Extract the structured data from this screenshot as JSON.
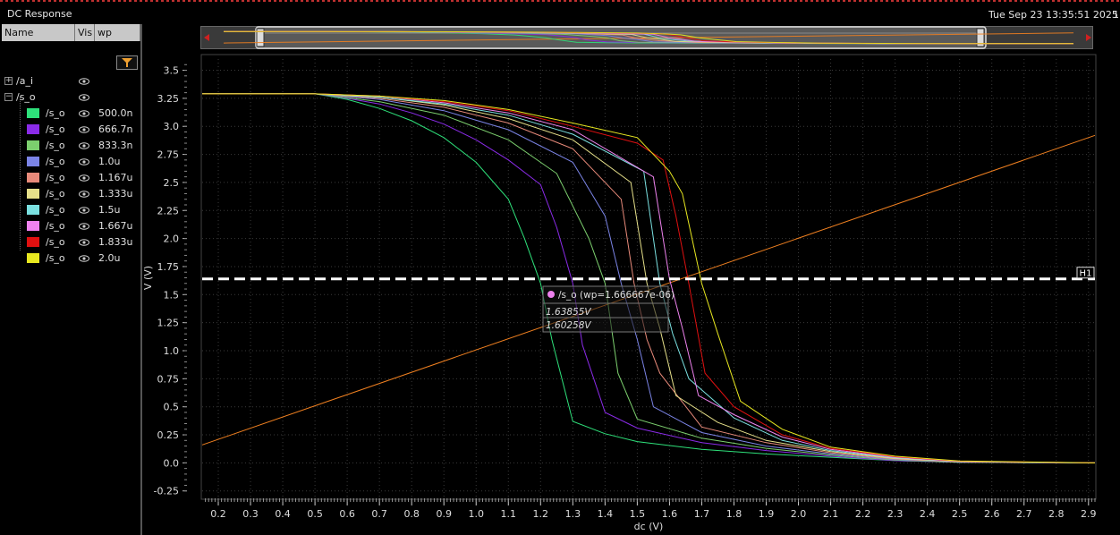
{
  "window": {
    "title": "DC Response",
    "timestamp": "Tue Sep 23 13:35:51 2025",
    "edge_text": "1"
  },
  "panel": {
    "columns": [
      "Name",
      "Vis",
      "wp"
    ],
    "groups": [
      {
        "name": "/a_i",
        "expand": "+"
      },
      {
        "name": "/s_o",
        "expand": "−"
      }
    ],
    "signals": [
      {
        "name": "/s_o",
        "wp": "500.0n",
        "color": "#2ee07a"
      },
      {
        "name": "/s_o",
        "wp": "666.7n",
        "color": "#8a2be8"
      },
      {
        "name": "/s_o",
        "wp": "833.3n",
        "color": "#7ccf6e"
      },
      {
        "name": "/s_o",
        "wp": "1.0u",
        "color": "#7b84e6"
      },
      {
        "name": "/s_o",
        "wp": "1.167u",
        "color": "#e88a7a"
      },
      {
        "name": "/s_o",
        "wp": "1.333u",
        "color": "#e6e08a"
      },
      {
        "name": "/s_o",
        "wp": "1.5u",
        "color": "#7ae0e0"
      },
      {
        "name": "/s_o",
        "wp": "1.667u",
        "color": "#ee82ee"
      },
      {
        "name": "/s_o",
        "wp": "1.833u",
        "color": "#e01010"
      },
      {
        "name": "/s_o",
        "wp": "2.0u",
        "color": "#e8e820"
      }
    ]
  },
  "marker": {
    "label": "H1",
    "value": 1.64,
    "color": "#ffffff"
  },
  "tooltip": {
    "title": "/s_o (wp=1.666667e-06)",
    "line1": "1.63855V",
    "line2": "1.60258V",
    "dot_color": "#ee82ee"
  },
  "chart_data": {
    "type": "line",
    "xlabel": "dc (V)",
    "ylabel": "V (V)",
    "xlim": [
      0.15,
      2.92
    ],
    "ylim": [
      -0.3,
      3.6
    ],
    "xticks": [
      "0.2",
      "0.3",
      "0.4",
      "0.5",
      "0.6",
      "0.7",
      "0.8",
      "0.9",
      "1.0",
      "1.1",
      "1.2",
      "1.3",
      "1.4",
      "1.5",
      "1.6",
      "1.7",
      "1.8",
      "1.9",
      "2.0",
      "2.1",
      "2.2",
      "2.3",
      "2.4",
      "2.5",
      "2.6",
      "2.7",
      "2.8",
      "2.9"
    ],
    "yticks": [
      "-0.25",
      "0.0",
      "0.25",
      "0.5",
      "0.75",
      "1.0",
      "1.25",
      "1.5",
      "1.75",
      "2.0",
      "2.25",
      "2.5",
      "2.75",
      "3.0",
      "3.25",
      "3.5"
    ],
    "grid": true,
    "background": "#000000",
    "series": [
      {
        "name": "/a_i",
        "color": "#f08020",
        "x": [
          0.15,
          2.92
        ],
        "y": [
          0.16,
          2.92
        ]
      },
      {
        "name": "500.0n",
        "color": "#2ee07a",
        "x": [
          0.15,
          0.5,
          0.6,
          0.7,
          0.8,
          0.9,
          1.0,
          1.1,
          1.15,
          1.2,
          1.235,
          1.3,
          1.4,
          1.5,
          1.7,
          1.9,
          2.1,
          2.3,
          2.5,
          2.92
        ],
        "y": [
          3.29,
          3.29,
          3.24,
          3.16,
          3.05,
          2.9,
          2.68,
          2.35,
          2.0,
          1.6,
          1.1,
          0.37,
          0.26,
          0.19,
          0.12,
          0.08,
          0.05,
          0.02,
          0.005,
          0.0
        ]
      },
      {
        "name": "666.7n",
        "color": "#8a2be8",
        "x": [
          0.15,
          0.5,
          0.6,
          0.7,
          0.8,
          0.9,
          1.0,
          1.1,
          1.2,
          1.25,
          1.3,
          1.33,
          1.4,
          1.5,
          1.7,
          1.9,
          2.1,
          2.3,
          2.5,
          2.92
        ],
        "y": [
          3.29,
          3.29,
          3.25,
          3.2,
          3.12,
          3.02,
          2.88,
          2.7,
          2.48,
          2.1,
          1.6,
          1.05,
          0.45,
          0.31,
          0.18,
          0.11,
          0.06,
          0.02,
          0.005,
          0.0
        ]
      },
      {
        "name": "833.3n",
        "color": "#7ccf6e",
        "x": [
          0.15,
          0.5,
          0.7,
          0.9,
          1.1,
          1.25,
          1.35,
          1.4,
          1.44,
          1.5,
          1.7,
          1.9,
          2.1,
          2.3,
          2.5,
          2.92
        ],
        "y": [
          3.29,
          3.29,
          3.22,
          3.1,
          2.88,
          2.58,
          2.0,
          1.6,
          0.8,
          0.39,
          0.22,
          0.13,
          0.07,
          0.025,
          0.005,
          0.0
        ]
      },
      {
        "name": "1.0u",
        "color": "#7b84e6",
        "x": [
          0.15,
          0.5,
          0.7,
          0.9,
          1.1,
          1.3,
          1.4,
          1.45,
          1.5,
          1.55,
          1.7,
          1.9,
          2.1,
          2.3,
          2.5,
          2.92
        ],
        "y": [
          3.29,
          3.29,
          3.24,
          3.14,
          2.97,
          2.68,
          2.2,
          1.6,
          1.1,
          0.5,
          0.27,
          0.15,
          0.08,
          0.03,
          0.008,
          0.0
        ]
      },
      {
        "name": "1.167u",
        "color": "#e88a7a",
        "x": [
          0.15,
          0.5,
          0.7,
          0.9,
          1.1,
          1.3,
          1.45,
          1.49,
          1.53,
          1.57,
          1.7,
          1.9,
          2.1,
          2.3,
          2.5,
          2.92
        ],
        "y": [
          3.29,
          3.29,
          3.25,
          3.17,
          3.03,
          2.8,
          2.35,
          1.6,
          1.1,
          0.8,
          0.32,
          0.18,
          0.09,
          0.035,
          0.009,
          0.0
        ]
      },
      {
        "name": "1.333u",
        "color": "#e6e08a",
        "x": [
          0.15,
          0.5,
          0.7,
          0.9,
          1.1,
          1.3,
          1.48,
          1.53,
          1.57,
          1.62,
          1.75,
          1.9,
          2.1,
          2.3,
          2.5,
          2.92
        ],
        "y": [
          3.29,
          3.29,
          3.26,
          3.19,
          3.07,
          2.88,
          2.5,
          1.6,
          1.2,
          0.6,
          0.36,
          0.2,
          0.1,
          0.04,
          0.01,
          0.0
        ]
      },
      {
        "name": "1.5u",
        "color": "#7ae0e0",
        "x": [
          0.15,
          0.5,
          0.7,
          0.9,
          1.1,
          1.3,
          1.52,
          1.57,
          1.61,
          1.66,
          1.8,
          1.95,
          2.1,
          2.3,
          2.5,
          2.92
        ],
        "y": [
          3.29,
          3.29,
          3.26,
          3.2,
          3.1,
          2.93,
          2.6,
          1.6,
          1.15,
          0.75,
          0.4,
          0.2,
          0.11,
          0.045,
          0.012,
          0.0
        ]
      },
      {
        "name": "1.667u",
        "color": "#ee82ee",
        "x": [
          0.15,
          0.5,
          0.7,
          0.9,
          1.1,
          1.3,
          1.55,
          1.6,
          1.64,
          1.69,
          1.8,
          1.95,
          2.1,
          2.3,
          2.5,
          2.92
        ],
        "y": [
          3.29,
          3.29,
          3.27,
          3.21,
          3.12,
          2.97,
          2.55,
          1.64,
          1.2,
          0.6,
          0.43,
          0.23,
          0.12,
          0.05,
          0.013,
          0.0
        ]
      },
      {
        "name": "1.833u",
        "color": "#e01010",
        "x": [
          0.15,
          0.5,
          0.7,
          0.9,
          1.1,
          1.3,
          1.5,
          1.58,
          1.62,
          1.66,
          1.71,
          1.8,
          1.95,
          2.1,
          2.3,
          2.5,
          2.92
        ],
        "y": [
          3.29,
          3.29,
          3.27,
          3.22,
          3.14,
          3.0,
          2.85,
          2.7,
          2.2,
          1.6,
          0.8,
          0.5,
          0.25,
          0.13,
          0.055,
          0.015,
          0.0
        ]
      },
      {
        "name": "2.0u",
        "color": "#e8e820",
        "x": [
          0.15,
          0.5,
          0.7,
          0.9,
          1.1,
          1.3,
          1.5,
          1.6,
          1.64,
          1.7,
          1.75,
          1.82,
          1.95,
          2.1,
          2.3,
          2.5,
          2.92
        ],
        "y": [
          3.29,
          3.29,
          3.27,
          3.23,
          3.15,
          3.03,
          2.9,
          2.6,
          2.4,
          1.6,
          1.15,
          0.55,
          0.3,
          0.14,
          0.06,
          0.017,
          0.0
        ]
      }
    ]
  }
}
